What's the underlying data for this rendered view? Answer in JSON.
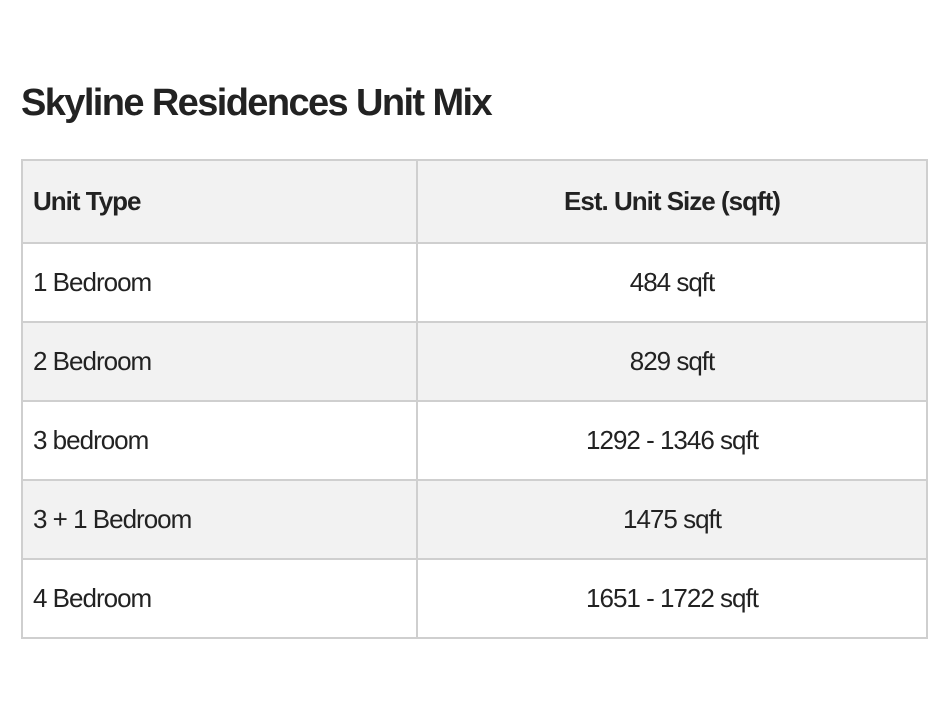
{
  "title": "Skyline Residences Unit Mix",
  "table": {
    "headers": [
      "Unit Type",
      "Est. Unit Size (sqft)"
    ],
    "rows": [
      {
        "unit_type": "1 Bedroom",
        "size": "484 sqft"
      },
      {
        "unit_type": "2 Bedroom",
        "size": "829 sqft"
      },
      {
        "unit_type": "3 bedroom",
        "size": "1292 - 1346 sqft"
      },
      {
        "unit_type": "3 + 1 Bedroom",
        "size": "1475 sqft"
      },
      {
        "unit_type": "4 Bedroom",
        "size": "1651 - 1722 sqft"
      }
    ]
  },
  "colors": {
    "text": "#222222",
    "border": "#cfcfcf",
    "shaded_row": "#f2f2f2",
    "background": "#ffffff"
  }
}
